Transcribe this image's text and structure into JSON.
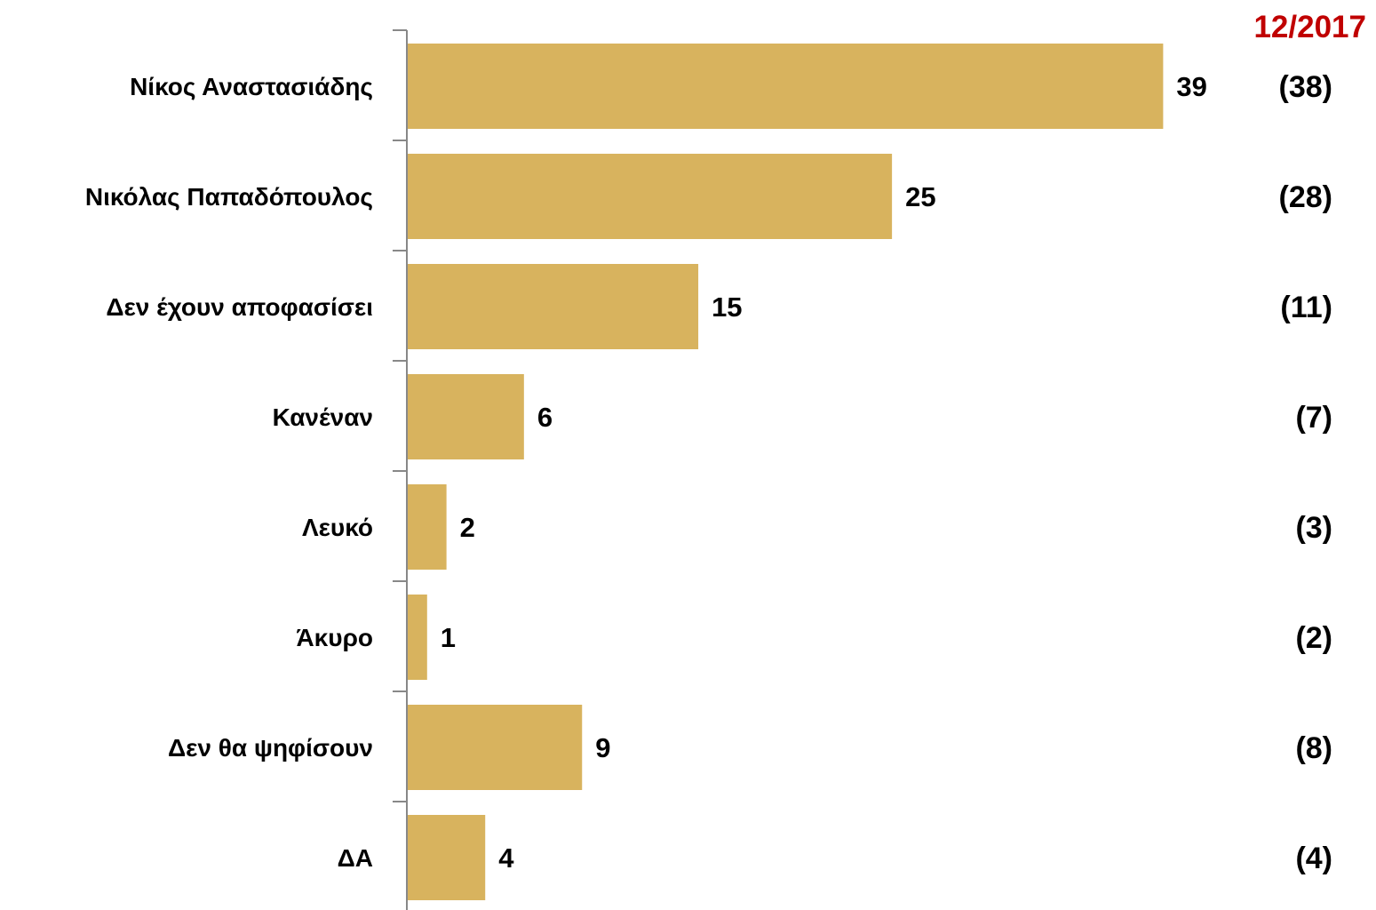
{
  "chart_data": {
    "type": "bar",
    "orientation": "horizontal",
    "categories": [
      "Νίκος Αναστασιάδης",
      "Νικόλας Παπαδόπουλος",
      "Δεν έχουν αποφασίσει",
      "Κανέναν",
      "Λευκό",
      "Άκυρο",
      "Δεν θα ψηφίσουν",
      "ΔΑ"
    ],
    "values": [
      39,
      25,
      15,
      6,
      2,
      1,
      9,
      4
    ],
    "previous_labels": [
      "(38)",
      "(28)",
      "(11)",
      "(7)",
      "(3)",
      "(2)",
      "(8)",
      "(4)"
    ],
    "previous_period_label": "12/2017",
    "xlim": [
      0,
      41
    ],
    "grid": false,
    "legend": "none",
    "bar_color": "#d8b35e",
    "period_label_color": "#c00000",
    "axis_color": "#888888"
  }
}
